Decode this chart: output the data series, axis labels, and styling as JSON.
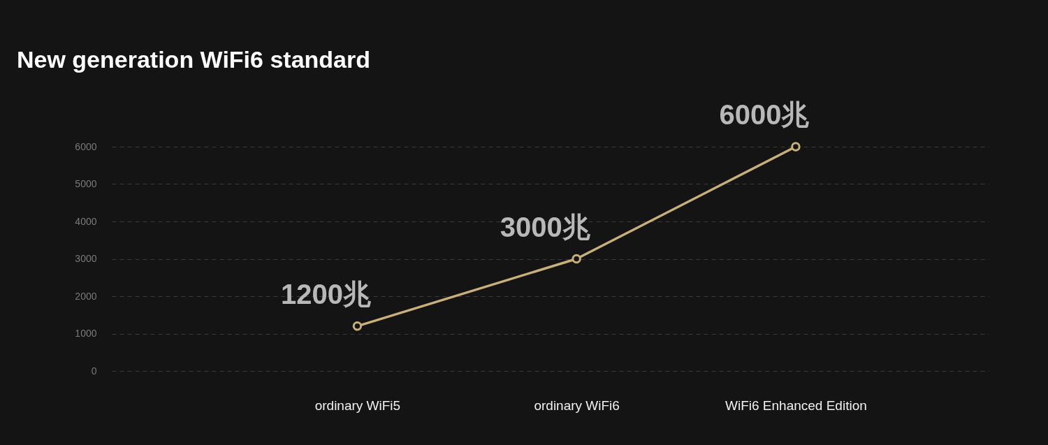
{
  "chart_data": {
    "type": "line",
    "title": "New generation WiFi6 standard",
    "categories": [
      "ordinary WiFi5",
      "ordinary WiFi6",
      "WiFi6 Enhanced Edition"
    ],
    "series": [
      {
        "color": "#c8b078",
        "values": [
          1200,
          3000,
          6000
        ],
        "value_labels": [
          "1200兆",
          "3000兆",
          "6000兆"
        ]
      }
    ],
    "ylim": [
      0,
      6000
    ],
    "yticks": [
      0,
      1000,
      2000,
      3000,
      4000,
      5000,
      6000
    ],
    "grid": "y",
    "marker": "circle",
    "line_style": "solid"
  }
}
